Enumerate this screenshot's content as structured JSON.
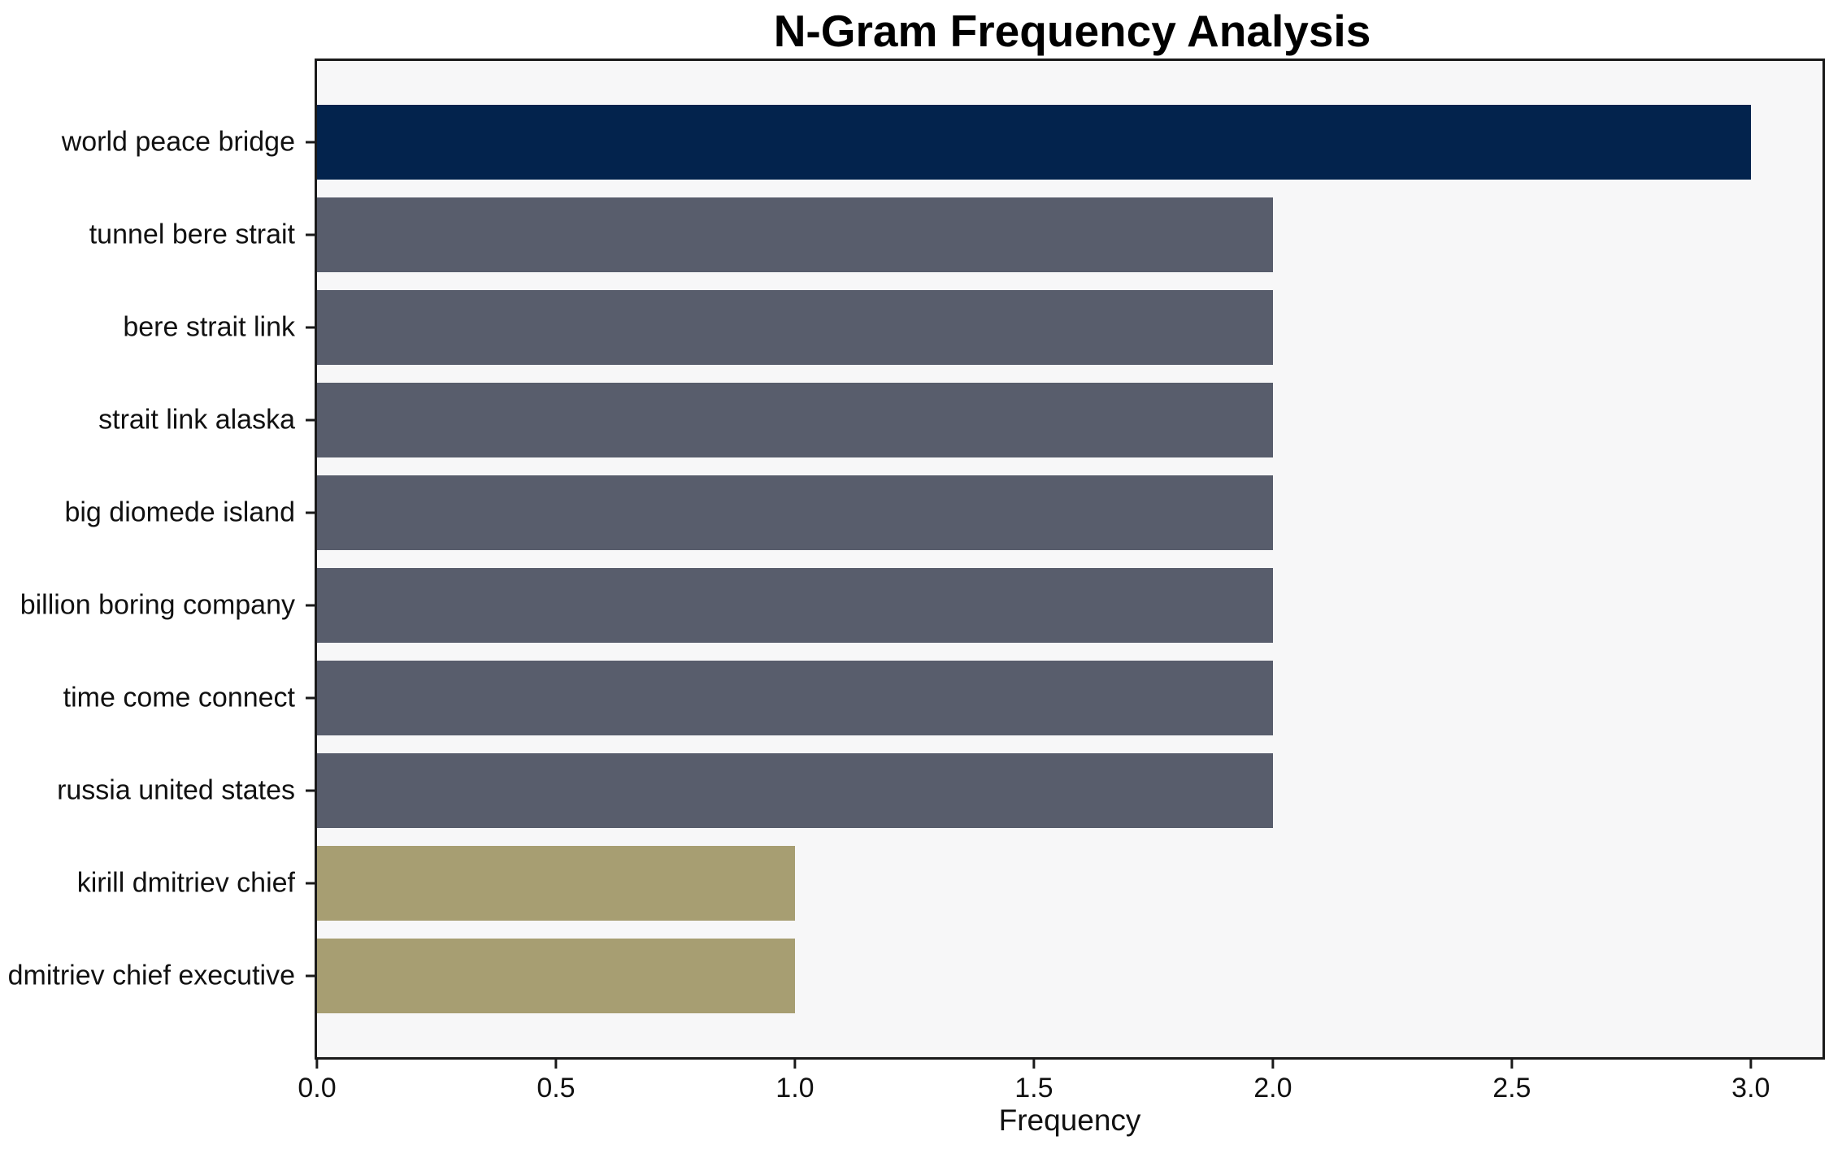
{
  "chart_data": {
    "type": "bar",
    "orientation": "horizontal",
    "title": "N-Gram Frequency Analysis",
    "xlabel": "Frequency",
    "ylabel": "",
    "categories": [
      "world peace bridge",
      "tunnel bere strait",
      "bere strait link",
      "strait link alaska",
      "big diomede island",
      "billion boring company",
      "time come connect",
      "russia united states",
      "kirill dmitriev chief",
      "dmitriev chief executive"
    ],
    "values": [
      3,
      2,
      2,
      2,
      2,
      2,
      2,
      2,
      1,
      1
    ],
    "bar_colors": [
      "#03234d",
      "#585d6c",
      "#585d6c",
      "#585d6c",
      "#585d6c",
      "#585d6c",
      "#585d6c",
      "#585d6c",
      "#a79e72",
      "#a79e72"
    ],
    "x_ticks": [
      0.0,
      0.5,
      1.0,
      1.5,
      2.0,
      2.5,
      3.0
    ],
    "x_tick_labels": [
      "0.0",
      "0.5",
      "1.0",
      "1.5",
      "2.0",
      "2.5",
      "3.0"
    ],
    "xlim": [
      0,
      3.15
    ],
    "grid": false,
    "legend": null,
    "colors": {
      "highest_bar": "#03234d",
      "mid_bar": "#585d6c",
      "low_bar": "#a79e72",
      "plot_background": "#f7f7f8",
      "figure_background": "#ffffff",
      "spine": "#1a1a1a",
      "text": "#111111"
    }
  }
}
